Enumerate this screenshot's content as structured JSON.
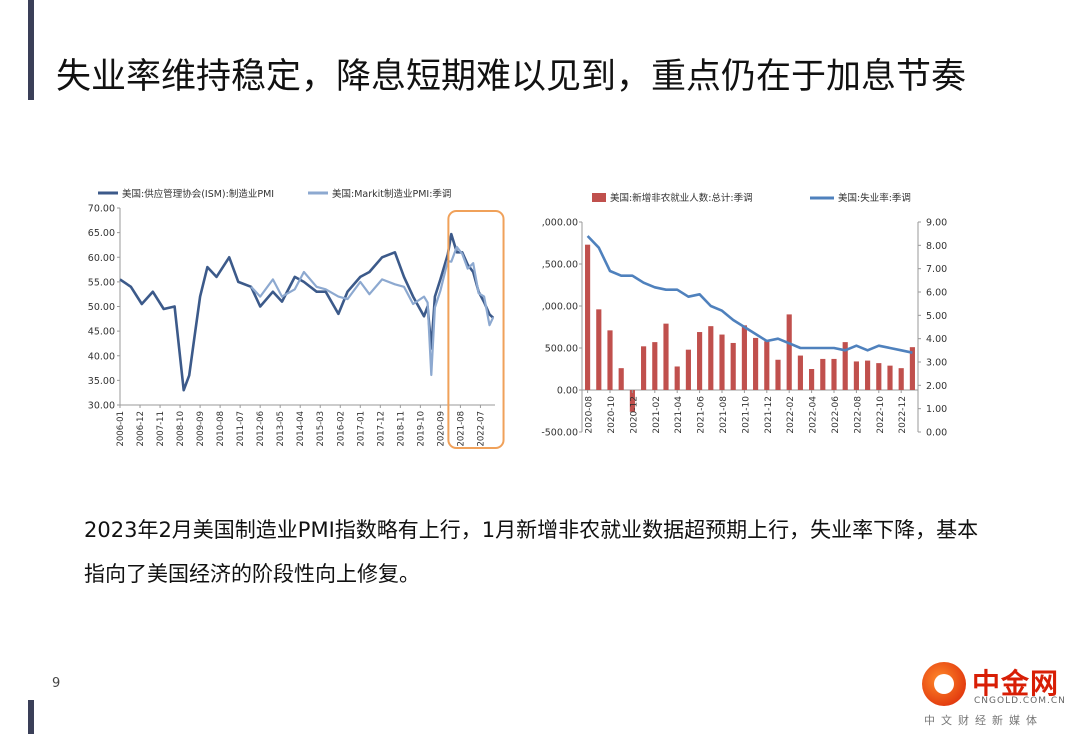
{
  "title": "失业率维持稳定，降息短期难以见到，重点仍在于加息节奏",
  "summary": "2023年2月美国制造业PMI指数略有上行，1月新增非农就业数据超预期上行，失业率下降，基本指向了美国经济的阶段性向上修复。",
  "page_number": "9",
  "logo": {
    "name": "中金网",
    "domain": "CNGOLD.COM.CN",
    "tagline": "中文财经新媒体"
  },
  "colors": {
    "accent_bar": "#3a3f58",
    "pmi_ism": "#3c5a8a",
    "pmi_markit": "#8da9d0",
    "bars": "#c0504d",
    "unemployment": "#4f81bd",
    "highlight": "#f0a15a"
  },
  "chart_data": [
    {
      "type": "line",
      "legend": [
        "美国:供应管理协会(ISM):制造业PMI",
        "美国:Markit制造业PMI:季调"
      ],
      "ylim": [
        30,
        70
      ],
      "y_ticks": [
        "30.00",
        "35.00",
        "40.00",
        "45.00",
        "50.00",
        "55.00",
        "60.00",
        "65.00",
        "70.00"
      ],
      "x_ticks": [
        "2006-01",
        "2006-12",
        "2007-11",
        "2008-10",
        "2009-09",
        "2010-08",
        "2011-07",
        "2012-06",
        "2013-05",
        "2014-04",
        "2015-03",
        "2016-02",
        "2017-01",
        "2017-12",
        "2018-11",
        "2019-10",
        "2020-09",
        "2021-08",
        "2022-07"
      ],
      "highlight_range": [
        "2020-09",
        "2022-12"
      ],
      "series": [
        {
          "name": "美国:供应管理协会(ISM):制造业PMI",
          "x": [
            "2006-01",
            "2006-07",
            "2007-01",
            "2007-07",
            "2008-01",
            "2008-07",
            "2008-12",
            "2009-03",
            "2009-06",
            "2009-09",
            "2010-01",
            "2010-06",
            "2011-01",
            "2011-06",
            "2012-01",
            "2012-06",
            "2013-01",
            "2013-06",
            "2014-01",
            "2014-06",
            "2015-01",
            "2015-06",
            "2016-01",
            "2016-06",
            "2017-01",
            "2017-06",
            "2018-01",
            "2018-08",
            "2019-01",
            "2019-06",
            "2019-12",
            "2020-02",
            "2020-04",
            "2020-06",
            "2020-09",
            "2021-01",
            "2021-03",
            "2021-06",
            "2021-09",
            "2021-12",
            "2022-03",
            "2022-06",
            "2022-09",
            "2022-12",
            "2023-02"
          ],
          "y": [
            55.5,
            54,
            50.5,
            53,
            49.5,
            50,
            33,
            36,
            44,
            52,
            58,
            56,
            60,
            55,
            54,
            50,
            53,
            51,
            56,
            55,
            53,
            53,
            48.5,
            53,
            56,
            57,
            60,
            61,
            56,
            52,
            48,
            50,
            41.5,
            52,
            55.5,
            60.5,
            64.7,
            61,
            61,
            58.5,
            57,
            53,
            50.9,
            48.4,
            47.7
          ]
        },
        {
          "name": "美国:Markit制造业PMI:季调",
          "x": [
            "2012-01",
            "2012-06",
            "2013-01",
            "2013-06",
            "2014-01",
            "2014-06",
            "2015-01",
            "2015-06",
            "2016-01",
            "2016-06",
            "2017-01",
            "2017-06",
            "2018-01",
            "2018-08",
            "2019-01",
            "2019-06",
            "2019-12",
            "2020-02",
            "2020-04",
            "2020-06",
            "2020-09",
            "2021-01",
            "2021-03",
            "2021-06",
            "2021-09",
            "2021-12",
            "2022-03",
            "2022-06",
            "2022-09",
            "2022-12",
            "2023-02"
          ],
          "y": [
            54,
            52,
            55.5,
            52,
            53.5,
            57,
            54,
            53.5,
            52,
            51.5,
            55,
            52.5,
            55.5,
            54.5,
            54,
            50.5,
            52,
            50.8,
            36.1,
            49.8,
            53.2,
            59.2,
            59.1,
            62.1,
            60.7,
            57.7,
            58.8,
            52.7,
            52,
            46.2,
            47.8
          ]
        }
      ]
    },
    {
      "type": "bar",
      "legend": [
        "美国:新增非农就业人数:总计:季调",
        "美国:失业率:季调"
      ],
      "y_left_ticks": [
        "-500.00",
        "0.00",
        "500.00",
        ",000.00",
        ",500.00",
        ",000.00"
      ],
      "y_left_lim": [
        -500,
        2000
      ],
      "y_right_ticks": [
        "0.00",
        "1.00",
        "2.00",
        "3.00",
        "4.00",
        "5.00",
        "6.00",
        "7.00",
        "8.00",
        "9.00"
      ],
      "y_right_lim": [
        0,
        9
      ],
      "x_ticks": [
        "2020-08",
        "2020-10",
        "2020-12",
        "2021-02",
        "2021-04",
        "2021-06",
        "2021-08",
        "2021-10",
        "2021-12",
        "2022-02",
        "2022-04",
        "2022-06",
        "2022-08",
        "2022-10",
        "2022-12"
      ],
      "categories": [
        "2020-08",
        "2020-09",
        "2020-10",
        "2020-11",
        "2020-12",
        "2021-01",
        "2021-02",
        "2021-03",
        "2021-04",
        "2021-05",
        "2021-06",
        "2021-07",
        "2021-08",
        "2021-09",
        "2021-10",
        "2021-11",
        "2021-12",
        "2022-01",
        "2022-02",
        "2022-03",
        "2022-04",
        "2022-05",
        "2022-06",
        "2022-07",
        "2022-08",
        "2022-09",
        "2022-10",
        "2022-11",
        "2022-12",
        "2023-01"
      ],
      "series": [
        {
          "name": "美国:新增非农就业人数:总计:季调",
          "type": "bar",
          "values": [
            1730,
            960,
            710,
            260,
            -260,
            520,
            570,
            790,
            280,
            480,
            690,
            760,
            660,
            560,
            770,
            620,
            580,
            360,
            900,
            410,
            250,
            370,
            370,
            570,
            340,
            350,
            320,
            290,
            260,
            510
          ]
        },
        {
          "name": "美国:失业率:季调",
          "type": "line",
          "axis": "right",
          "values": [
            8.4,
            7.9,
            6.9,
            6.7,
            6.7,
            6.4,
            6.2,
            6.1,
            6.1,
            5.8,
            5.9,
            5.4,
            5.2,
            4.8,
            4.5,
            4.2,
            3.9,
            4.0,
            3.8,
            3.6,
            3.6,
            3.6,
            3.6,
            3.5,
            3.7,
            3.5,
            3.7,
            3.6,
            3.5,
            3.4
          ]
        }
      ]
    }
  ]
}
